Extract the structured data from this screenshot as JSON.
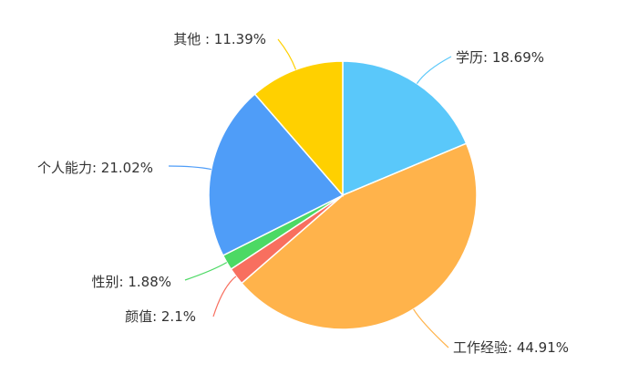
{
  "chart_data": {
    "type": "pie",
    "title": "",
    "slices": [
      {
        "label": "学历",
        "value": 18.69,
        "text": "学历: 18.69%",
        "color": "#5ac8fa"
      },
      {
        "label": "工作经验",
        "value": 44.91,
        "text": "工作经验: 44.91%",
        "color": "#ffb34b"
      },
      {
        "label": "颜值",
        "value": 2.1,
        "text": "颜值: 2.1%",
        "color": "#f86f5f"
      },
      {
        "label": "性别",
        "value": 1.88,
        "text": "性别: 1.88%",
        "color": "#4cd964"
      },
      {
        "label": "个人能力",
        "value": 21.02,
        "text": "个人能力: 21.02%",
        "color": "#4f9df8"
      },
      {
        "label": "其他",
        "value": 11.39,
        "text": "其他 : 11.39%",
        "color": "#ffd000"
      }
    ],
    "start_angle": "top",
    "direction": "clockwise",
    "legend": "none"
  }
}
